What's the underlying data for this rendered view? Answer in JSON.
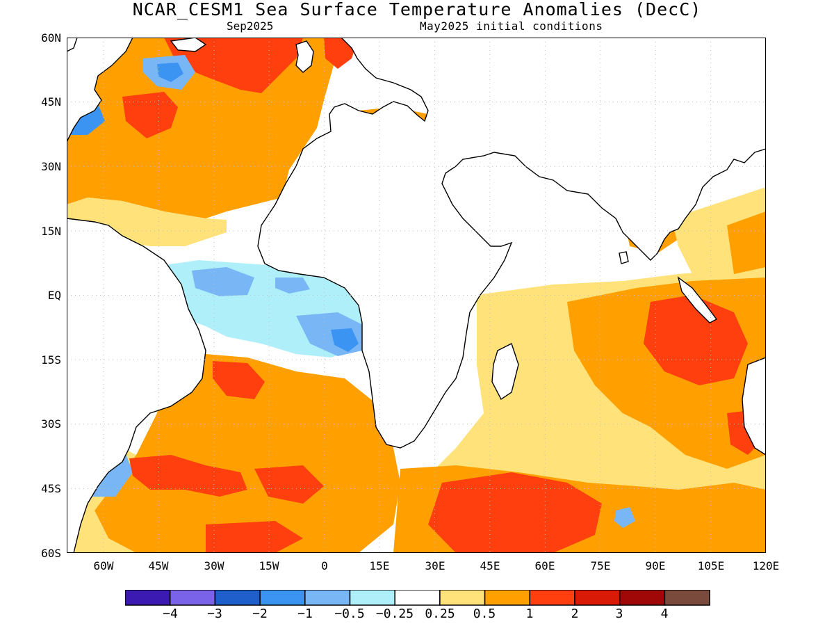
{
  "title": "NCAR_CESM1 Sea Surface Temperature Anomalies (DecC)",
  "subtitle_left": "Sep2025",
  "subtitle_right": "May2025 initial conditions",
  "map": {
    "lon_range": [
      -70,
      120
    ],
    "lat_range": [
      -60,
      60
    ],
    "grid": true,
    "y_ticks": [
      "60N",
      "45N",
      "30N",
      "15N",
      "EQ",
      "15S",
      "30S",
      "45S",
      "60S"
    ],
    "x_ticks": [
      "60W",
      "45W",
      "30W",
      "15W",
      "0",
      "15E",
      "30E",
      "45E",
      "60E",
      "75E",
      "90E",
      "105E",
      "120E"
    ]
  },
  "colorbar": {
    "colors": [
      "#3a1ab0",
      "#7a63e8",
      "#1f5fcc",
      "#3c94f2",
      "#78b6f6",
      "#aeeff9",
      "#ffffff",
      "#ffe27a",
      "#ffa000",
      "#ff3f0e",
      "#d81a07",
      "#a00808",
      "#7a4b3c"
    ],
    "labels": [
      "−4",
      "−3",
      "−2",
      "−1",
      "−0.5",
      "−0.25",
      "0.25",
      "0.5",
      "1",
      "2",
      "3",
      "4"
    ]
  },
  "chart_data": {
    "type": "heatmap",
    "title": "NCAR_CESM1 Sea Surface Temperature Anomalies (DecC)",
    "subtitle": [
      "Sep2025",
      "May2025 initial conditions"
    ],
    "xlabel": "",
    "ylabel": "",
    "xlim": [
      -70,
      120
    ],
    "ylim": [
      -60,
      60
    ],
    "units": "DecC",
    "levels": [
      -4,
      -3,
      -2,
      -1,
      -0.5,
      -0.25,
      0.25,
      0.5,
      1,
      2,
      3,
      4
    ],
    "regions": [
      {
        "lon": -50,
        "lat": 45,
        "value": 2.0
      },
      {
        "lon": -37,
        "lat": 50,
        "value": -1.5
      },
      {
        "lon": -64,
        "lat": 43,
        "value": -1.0
      },
      {
        "lon": -60,
        "lat": 32,
        "value": 0.8
      },
      {
        "lon": -20,
        "lat": 55,
        "value": 1.5
      },
      {
        "lon": -25,
        "lat": 2,
        "value": -0.8
      },
      {
        "lon": 0,
        "lat": 0,
        "value": -0.4
      },
      {
        "lon": 5,
        "lat": -10,
        "value": -1.0
      },
      {
        "lon": -25,
        "lat": -18,
        "value": 1.0
      },
      {
        "lon": -50,
        "lat": -42,
        "value": -0.8
      },
      {
        "lon": -40,
        "lat": -40,
        "value": 1.5
      },
      {
        "lon": -10,
        "lat": -45,
        "value": 1.5
      },
      {
        "lon": 55,
        "lat": -47,
        "value": 1.6
      },
      {
        "lon": 100,
        "lat": -8,
        "value": 1.6
      },
      {
        "lon": 90,
        "lat": 10,
        "value": 0.7
      },
      {
        "lon": 80,
        "lat": -52,
        "value": -1.0
      },
      {
        "lon": 70,
        "lat": -30,
        "value": 0.5
      },
      {
        "lon": 20,
        "lat": 40,
        "value": 0.8
      }
    ]
  }
}
